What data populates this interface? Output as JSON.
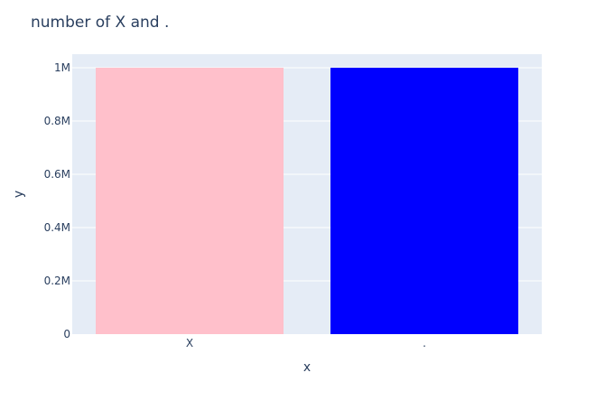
{
  "chart_data": {
    "type": "bar",
    "title": "number of X and .",
    "xlabel": "x",
    "ylabel": "y",
    "categories": [
      "X",
      "."
    ],
    "values": [
      1000000,
      1000000
    ],
    "bar_colors": [
      "#FFC0CB",
      "#0000FF"
    ],
    "ylim": [
      0,
      1000000
    ],
    "yticks": [
      0,
      200000,
      400000,
      600000,
      800000,
      1000000
    ],
    "ytick_labels": [
      "0",
      "0.2M",
      "0.4M",
      "0.6M",
      "0.8M",
      "1M"
    ],
    "grid": true,
    "legend": false,
    "plot_background": "#E5ECF6",
    "text_color": "#2A3F5F"
  }
}
